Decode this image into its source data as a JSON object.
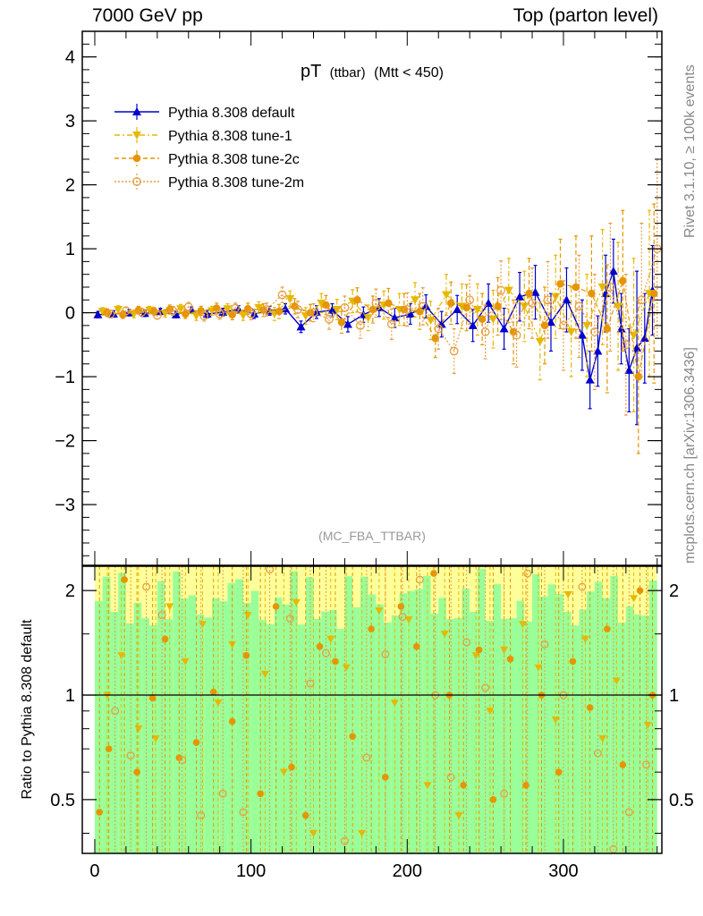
{
  "header": {
    "left": "7000 GeV pp",
    "right": "Top (parton level)"
  },
  "side_text": {
    "upper": "Rivet 3.1.10, ≥ 100k events",
    "lower": "mcplots.cern.ch [arXiv:1306.3436]"
  },
  "chart_data": [
    {
      "type": "line",
      "panel": "main",
      "title": "pT",
      "title_small": "(ttbar)",
      "title_suffix": "(Mtt < 450)",
      "watermark": "(MC_FBA_TTBAR)",
      "xlim": [
        -8,
        363
      ],
      "ylim": [
        -3.95,
        4.4
      ],
      "yticks": [
        -3,
        -2,
        -1,
        0,
        1,
        2,
        3,
        4
      ],
      "ytick_labels": [
        "−3",
        "−2",
        "−1",
        "0",
        "1",
        "2",
        "3",
        "4"
      ],
      "legend_position": "top-left",
      "series": [
        {
          "name": "Pythia 8.308 default",
          "color": "#0000cc",
          "marker": "triangle-up",
          "line": "solid",
          "x": [
            2,
            12,
            22,
            32,
            42,
            52,
            62,
            72,
            82,
            92,
            102,
            112,
            122,
            132,
            142,
            152,
            162,
            172,
            182,
            192,
            202,
            212,
            222,
            232,
            242,
            252,
            262,
            272,
            282,
            292,
            302,
            312,
            317,
            322,
            327,
            332,
            337,
            342,
            347,
            352,
            357
          ],
          "y": [
            -0.03,
            -0.02,
            0.0,
            -0.01,
            0.02,
            -0.03,
            0.04,
            -0.02,
            0.01,
            0.05,
            -0.02,
            0.03,
            0.06,
            -0.22,
            0.01,
            0.04,
            -0.18,
            -0.03,
            0.08,
            -0.08,
            -0.02,
            0.1,
            -0.18,
            0.05,
            -0.2,
            0.15,
            -0.25,
            0.25,
            0.32,
            -0.15,
            0.2,
            -0.35,
            -1.05,
            -0.6,
            0.3,
            0.65,
            -0.25,
            -0.9,
            -0.55,
            -0.4,
            0.35
          ],
          "err": [
            0.05,
            0.05,
            0.05,
            0.05,
            0.05,
            0.05,
            0.05,
            0.06,
            0.06,
            0.06,
            0.07,
            0.07,
            0.08,
            0.09,
            0.1,
            0.1,
            0.12,
            0.12,
            0.14,
            0.15,
            0.16,
            0.18,
            0.2,
            0.22,
            0.25,
            0.3,
            0.32,
            0.38,
            0.42,
            0.45,
            0.5,
            0.55,
            0.45,
            0.55,
            0.6,
            0.5,
            0.55,
            0.65,
            1.2,
            0.7,
            0.7
          ]
        },
        {
          "name": "Pythia 8.308 tune-1",
          "color": "#e6b800",
          "marker": "triangle-down",
          "line": "dash-dot",
          "x": [
            5,
            15,
            25,
            35,
            45,
            55,
            65,
            75,
            85,
            95,
            105,
            115,
            125,
            135,
            145,
            155,
            165,
            175,
            185,
            195,
            205,
            215,
            225,
            235,
            245,
            255,
            265,
            275,
            285,
            295,
            305,
            315,
            325,
            335,
            345,
            355
          ],
          "y": [
            0.02,
            0.05,
            -0.02,
            0.04,
            -0.01,
            0.06,
            -0.05,
            0.03,
            0.06,
            -0.04,
            0.08,
            -0.02,
            0.22,
            -0.05,
            0.15,
            0.05,
            0.18,
            -0.08,
            0.12,
            0.05,
            0.2,
            -0.12,
            0.28,
            0.1,
            0.05,
            -0.1,
            0.35,
            0.1,
            -0.45,
            0.25,
            -0.3,
            -0.2,
            0.4,
            0.1,
            -0.35,
            0.3
          ],
          "err": [
            0.06,
            0.06,
            0.06,
            0.06,
            0.06,
            0.07,
            0.07,
            0.07,
            0.08,
            0.08,
            0.09,
            0.1,
            0.12,
            0.13,
            0.15,
            0.16,
            0.18,
            0.2,
            0.22,
            0.25,
            0.27,
            0.3,
            0.32,
            0.35,
            0.4,
            0.45,
            0.5,
            0.55,
            0.6,
            0.65,
            0.7,
            0.8,
            0.9,
            1.0,
            1.2,
            1.3
          ]
        },
        {
          "name": "Pythia 8.308 tune-2c",
          "color": "#e69500",
          "marker": "circle",
          "line": "dashed",
          "x": [
            8,
            18,
            28,
            38,
            48,
            58,
            68,
            78,
            88,
            98,
            108,
            118,
            128,
            138,
            148,
            158,
            168,
            178,
            188,
            198,
            208,
            218,
            228,
            238,
            248,
            258,
            268,
            278,
            288,
            298,
            308,
            318,
            328,
            338,
            348,
            358
          ],
          "y": [
            0.0,
            -0.03,
            0.04,
            0.02,
            0.05,
            -0.02,
            0.03,
            0.07,
            -0.03,
            0.06,
            0.04,
            0.02,
            0.1,
            0.0,
            0.12,
            -0.15,
            0.2,
            0.05,
            0.15,
            0.05,
            0.02,
            -0.4,
            0.15,
            0.08,
            -0.1,
            0.1,
            -0.3,
            0.3,
            -0.2,
            0.45,
            0.4,
            0.3,
            -0.25,
            0.5,
            -1.0,
            0.3
          ],
          "err": [
            0.06,
            0.06,
            0.06,
            0.06,
            0.07,
            0.07,
            0.07,
            0.08,
            0.08,
            0.09,
            0.1,
            0.11,
            0.12,
            0.13,
            0.15,
            0.17,
            0.19,
            0.21,
            0.23,
            0.25,
            0.28,
            0.3,
            0.33,
            0.36,
            0.4,
            0.45,
            0.5,
            0.55,
            0.6,
            0.7,
            0.8,
            0.9,
            1.0,
            1.1,
            1.2,
            1.4
          ]
        },
        {
          "name": "Pythia 8.308 tune-2m",
          "color": "#e69e40",
          "marker": "open-circle",
          "line": "dotted",
          "x": [
            10,
            20,
            30,
            40,
            50,
            60,
            70,
            80,
            90,
            100,
            110,
            120,
            130,
            140,
            150,
            160,
            170,
            180,
            190,
            200,
            210,
            220,
            230,
            240,
            250,
            260,
            270,
            280,
            290,
            300,
            310,
            320,
            330,
            340,
            350,
            360
          ],
          "y": [
            -0.02,
            0.03,
            0.01,
            -0.04,
            0.03,
            0.09,
            -0.05,
            -0.02,
            0.07,
            -0.02,
            0.05,
            0.28,
            0.05,
            0.0,
            -0.1,
            0.08,
            -0.2,
            0.15,
            -0.18,
            0.05,
            0.1,
            -0.25,
            -0.6,
            0.2,
            -0.3,
            0.35,
            -0.35,
            0.15,
            0.2,
            -0.2,
            0.1,
            -0.3,
            0.4,
            -0.5,
            0.2,
            1.0
          ],
          "err": [
            0.06,
            0.06,
            0.06,
            0.06,
            0.07,
            0.07,
            0.08,
            0.08,
            0.08,
            0.09,
            0.1,
            0.12,
            0.13,
            0.14,
            0.16,
            0.18,
            0.2,
            0.22,
            0.24,
            0.26,
            0.29,
            0.32,
            0.35,
            0.38,
            0.42,
            0.46,
            0.5,
            0.55,
            0.6,
            0.7,
            0.8,
            0.9,
            1.0,
            1.1,
            1.2,
            1.4
          ]
        }
      ]
    },
    {
      "type": "scatter",
      "panel": "ratio",
      "ylabel": "Ratio to Pythia 8.308 default",
      "reference_line": 1,
      "ylim": [
        0.35,
        2.35
      ],
      "xlim": [
        -8,
        363
      ],
      "yticks": [
        0.5,
        1,
        2
      ],
      "ytick_labels": [
        "0.5",
        "1",
        "2"
      ],
      "xticks": [
        0,
        100,
        200,
        300
      ],
      "xtick_labels": [
        "0",
        "100",
        "200",
        "300"
      ],
      "band_colors": {
        "outer": "#ffff99",
        "inner": "#99ff99"
      },
      "series": [
        {
          "name": "Pythia 8.308 tune-1",
          "color": "#e6b800",
          "marker": "triangle-down",
          "x": [
            8,
            17,
            28,
            39,
            48,
            58,
            69,
            79,
            88,
            98,
            109,
            121,
            129,
            140,
            151,
            161,
            171,
            182,
            192,
            201,
            213,
            224,
            233,
            244,
            253,
            262,
            274,
            284,
            295,
            303,
            314,
            325,
            334,
            345,
            354
          ],
          "y": [
            1.0,
            1.3,
            0.8,
            0.75,
            1.8,
            1.25,
            1.6,
            0.95,
            1.4,
            1.7,
            1.15,
            0.6,
            1.85,
            0.4,
            1.45,
            1.2,
            0.4,
            1.75,
            0.95,
            1.65,
            0.55,
            1.5,
            0.45,
            1.3,
            0.9,
            1.35,
            1.6,
            1.2,
            0.85,
            1.95,
            1.45,
            0.75,
            1.1,
            1.9,
            0.82
          ]
        },
        {
          "name": "Pythia 8.308 tune-2c",
          "color": "#e69500",
          "marker": "circle",
          "x": [
            3,
            9,
            19,
            27,
            37,
            45,
            54,
            65,
            76,
            88,
            97,
            106,
            116,
            126,
            135,
            144,
            154,
            165,
            177,
            186,
            196,
            206,
            217,
            227,
            236,
            246,
            255,
            266,
            276,
            286,
            297,
            306,
            317,
            328,
            338,
            349,
            357
          ],
          "y": [
            0.46,
            0.7,
            2.15,
            0.6,
            0.98,
            1.45,
            0.66,
            0.73,
            1.02,
            0.84,
            1.3,
            0.52,
            1.8,
            0.62,
            0.45,
            1.38,
            1.25,
            0.76,
            1.55,
            0.58,
            1.8,
            1.38,
            2.24,
            1.0,
            0.55,
            1.35,
            0.5,
            1.27,
            0.55,
            1.0,
            0.6,
            1.25,
            0.92,
            1.55,
            0.63,
            2.0,
            1.0
          ]
        },
        {
          "name": "Pythia 8.308 tune-2m",
          "color": "#e69e40",
          "marker": "open-circle",
          "x": [
            13,
            23,
            33,
            43,
            56,
            68,
            82,
            95,
            112,
            125,
            138,
            148,
            160,
            174,
            186,
            197,
            208,
            218,
            228,
            238,
            250,
            262,
            277,
            288,
            300,
            312,
            322,
            332,
            342,
            353
          ],
          "y": [
            0.9,
            0.67,
            2.05,
            1.7,
            0.65,
            0.45,
            0.52,
            0.46,
            2.3,
            1.66,
            1.08,
            1.32,
            0.38,
            0.66,
            1.31,
            1.68,
            2.15,
            1.0,
            0.58,
            1.42,
            1.05,
            0.52,
            2.24,
            1.4,
            1.0,
            2.05,
            0.68,
            0.36,
            0.46,
            0.63
          ]
        }
      ]
    }
  ]
}
